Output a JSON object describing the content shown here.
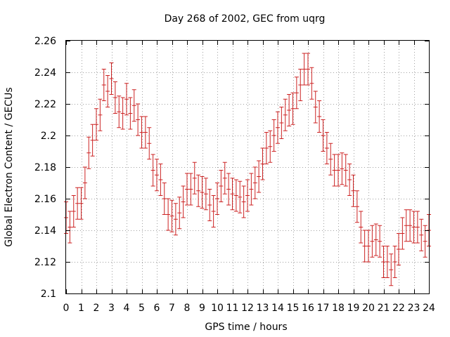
{
  "chart_data": {
    "type": "scatter",
    "style": "errorbars",
    "title": "Day 268 of 2002, GEC from uqrg",
    "xlabel": "GPS time / hours",
    "ylabel": "Global Electron Content / GECUs",
    "xlim": [
      0,
      24
    ],
    "ylim": [
      2.1,
      2.26
    ],
    "xticks": [
      0,
      1,
      2,
      3,
      4,
      5,
      6,
      7,
      8,
      9,
      10,
      11,
      12,
      13,
      14,
      15,
      16,
      17,
      18,
      19,
      20,
      21,
      22,
      23,
      24
    ],
    "xtick_labels": [
      "0",
      "1",
      "2",
      "3",
      "4",
      "5",
      "6",
      "7",
      "8",
      "9",
      "10",
      "11",
      "12",
      "13",
      "14",
      "15",
      "16",
      "17",
      "18",
      "19",
      "20",
      "21",
      "22",
      "23",
      "24"
    ],
    "yticks": [
      2.1,
      2.12,
      2.14,
      2.16,
      2.18,
      2.2,
      2.22,
      2.24,
      2.26
    ],
    "ytick_labels": [
      "2.1",
      "2.12",
      "2.14",
      "2.16",
      "2.18",
      "2.2",
      "2.22",
      "2.24",
      "2.26"
    ],
    "grid": true,
    "color": "#cc2222",
    "error": 0.01,
    "x": [
      0.0,
      0.25,
      0.5,
      0.75,
      1.0,
      1.25,
      1.5,
      1.75,
      2.0,
      2.25,
      2.5,
      2.75,
      3.0,
      3.25,
      3.5,
      3.75,
      4.0,
      4.25,
      4.5,
      4.75,
      5.0,
      5.25,
      5.5,
      5.75,
      6.0,
      6.25,
      6.5,
      6.75,
      7.0,
      7.25,
      7.5,
      7.75,
      8.0,
      8.25,
      8.5,
      8.75,
      9.0,
      9.25,
      9.5,
      9.75,
      10.0,
      10.25,
      10.5,
      10.75,
      11.0,
      11.25,
      11.5,
      11.75,
      12.0,
      12.25,
      12.5,
      12.75,
      13.0,
      13.25,
      13.5,
      13.75,
      14.0,
      14.25,
      14.5,
      14.75,
      15.0,
      15.25,
      15.5,
      15.75,
      16.0,
      16.25,
      16.5,
      16.75,
      17.0,
      17.25,
      17.5,
      17.75,
      18.0,
      18.25,
      18.5,
      18.75,
      19.0,
      19.25,
      19.5,
      19.75,
      20.0,
      20.25,
      20.5,
      20.75,
      21.0,
      21.25,
      21.5,
      21.75,
      22.0,
      22.25,
      22.5,
      22.75,
      23.0,
      23.25,
      23.5,
      23.75,
      24.0
    ],
    "y": [
      2.148,
      2.142,
      2.152,
      2.157,
      2.157,
      2.17,
      2.189,
      2.197,
      2.207,
      2.213,
      2.232,
      2.228,
      2.236,
      2.224,
      2.215,
      2.214,
      2.223,
      2.214,
      2.219,
      2.21,
      2.202,
      2.202,
      2.195,
      2.178,
      2.175,
      2.172,
      2.16,
      2.15,
      2.149,
      2.147,
      2.151,
      2.158,
      2.166,
      2.166,
      2.173,
      2.165,
      2.164,
      2.163,
      2.156,
      2.152,
      2.16,
      2.168,
      2.173,
      2.166,
      2.163,
      2.162,
      2.161,
      2.158,
      2.162,
      2.166,
      2.17,
      2.174,
      2.182,
      2.192,
      2.193,
      2.2,
      2.205,
      2.208,
      2.213,
      2.216,
      2.217,
      2.227,
      2.232,
      2.242,
      2.242,
      2.233,
      2.218,
      2.212,
      2.2,
      2.192,
      2.185,
      2.178,
      2.178,
      2.179,
      2.178,
      2.172,
      2.165,
      2.155,
      2.142,
      2.13,
      2.13,
      2.133,
      2.134,
      2.133,
      2.12,
      2.12,
      2.115,
      2.12,
      2.128,
      2.138,
      2.143,
      2.143,
      2.142,
      2.142,
      2.137,
      2.133,
      2.14
    ]
  }
}
